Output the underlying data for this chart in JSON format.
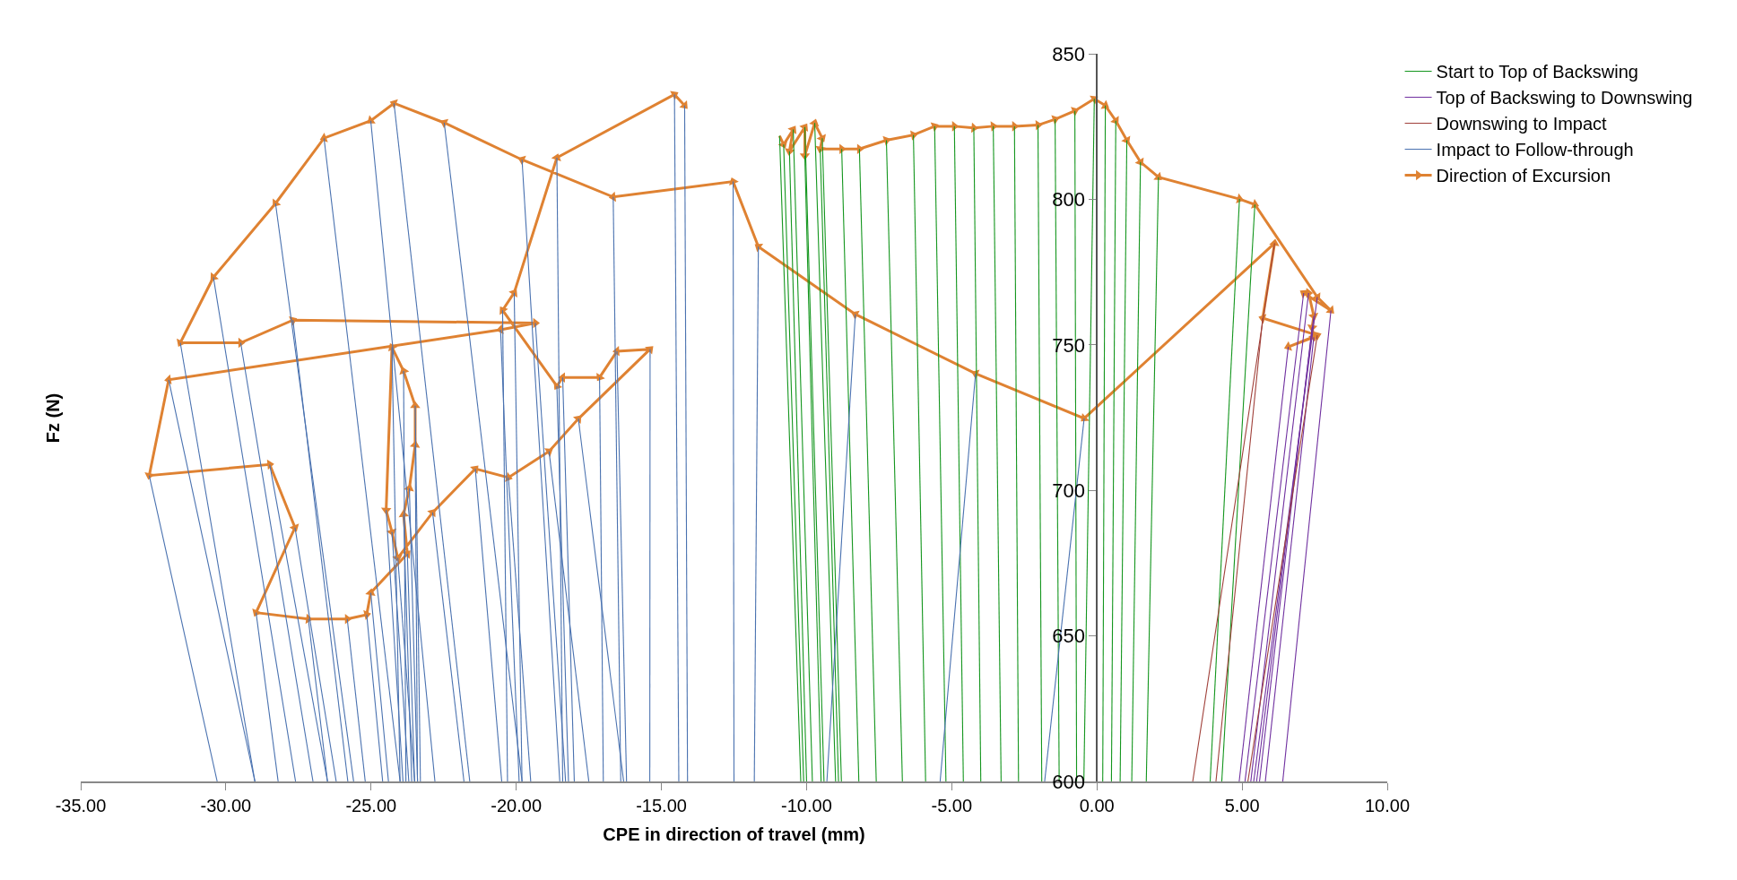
{
  "chart_data": {
    "type": "line",
    "xlabel": "CPE in direction of travel (mm)",
    "ylabel": "Fz (N)",
    "xlim": [
      -35,
      10
    ],
    "xticks": [
      {
        "value": -35,
        "label": "-35.00"
      },
      {
        "value": -30,
        "label": "-30.00"
      },
      {
        "value": -25,
        "label": "-25.00"
      },
      {
        "value": -20,
        "label": "-20.00"
      },
      {
        "value": -15,
        "label": "-15.00"
      },
      {
        "value": -10,
        "label": "-10.00"
      },
      {
        "value": -5,
        "label": "-5.00"
      },
      {
        "value": 0,
        "label": "0.00"
      },
      {
        "value": 5,
        "label": "5.00"
      },
      {
        "value": 10,
        "label": "10.00"
      }
    ],
    "ylim": [
      600,
      850
    ],
    "yticks": [
      600,
      650,
      700,
      750,
      800,
      850
    ],
    "legend": "top right",
    "series": [
      {
        "name": "Start to Top of Backswing",
        "color": "#14961e",
        "x": [
          -10.2,
          -10.93,
          null,
          -10.1,
          -10.79,
          null,
          -9.8,
          -10.46,
          null,
          -10.0,
          -10.59,
          null,
          -9.4,
          -10.06,
          null,
          -9.5,
          -10.06,
          null,
          -9.0,
          -9.72,
          null,
          -8.8,
          -9.46,
          null,
          -8.9,
          -9.53,
          null,
          -8.2,
          -8.79,
          null,
          -7.6,
          -8.18,
          null,
          -6.7,
          -7.25,
          null,
          -5.9,
          -6.32,
          null,
          -5.2,
          -5.59,
          null,
          -4.6,
          -4.91,
          null,
          -4.0,
          -4.24,
          null,
          -3.3,
          -3.57,
          null,
          -2.7,
          -2.84,
          null,
          -1.9,
          -2.03,
          null,
          -1.3,
          -1.44,
          null,
          -0.7,
          -0.76,
          null,
          -0.45,
          -0.09,
          null,
          0.2,
          0.29,
          null,
          0.5,
          0.65,
          null,
          0.8,
          1.03,
          null,
          1.2,
          1.5,
          null,
          1.7,
          2.12,
          null,
          3.9,
          4.91,
          null,
          4.3,
          5.44
        ],
        "values": [
          600,
          821.8,
          null,
          600,
          818.8,
          null,
          600,
          824,
          null,
          600,
          816.5,
          null,
          600,
          824.8,
          null,
          600,
          815,
          null,
          600,
          826.2,
          null,
          600,
          821,
          null,
          600,
          817.3,
          null,
          600,
          817.3,
          null,
          600,
          817.3,
          null,
          600,
          820.3,
          null,
          600,
          822.1,
          null,
          600,
          825.1,
          null,
          600,
          825.1,
          null,
          600,
          824.5,
          null,
          600,
          825.1,
          null,
          600,
          825.1,
          null,
          600,
          825.5,
          null,
          600,
          827.5,
          null,
          600,
          830.4,
          null,
          600,
          834.5,
          null,
          600,
          832.2,
          null,
          600,
          827,
          null,
          600,
          820.3,
          null,
          600,
          812.8,
          null,
          600,
          807.6,
          null,
          600,
          800.1,
          null,
          600,
          798.2
        ]
      },
      {
        "name": "Top of Backswing to Downswing",
        "color": "#7030a0",
        "x": [
          5.4,
          7.59,
          null,
          6.4,
          8.06,
          null,
          5.1,
          7.12,
          null,
          5.3,
          7.29,
          null,
          5.5,
          7.47,
          null,
          5.6,
          7.41,
          null,
          5.8,
          7.47,
          null,
          4.9,
          6.59
        ],
        "values": [
          600,
          766.4,
          null,
          600,
          761.8,
          null,
          600,
          767.8,
          null,
          600,
          767.8,
          null,
          600,
          759.9,
          null,
          600,
          756,
          null,
          600,
          752.6,
          null,
          600,
          749.3
        ]
      },
      {
        "name": "Downswing to Impact",
        "color": "#a0403a",
        "x": [
          5.2,
          7.59,
          null,
          4.1,
          5.71,
          null,
          3.3,
          6.12
        ],
        "values": [
          600,
          753.3,
          null,
          600,
          759.2,
          null,
          600,
          784.9
        ]
      },
      {
        "name": "Impact to Follow-through",
        "color": "#4a72b0",
        "x": [
          -1.8,
          -0.44,
          null,
          -5.4,
          -4.18,
          null,
          -9.3,
          -8.32,
          null,
          -11.8,
          -11.66,
          null,
          -12.5,
          -12.53,
          null,
          -16.4,
          -16.66,
          null,
          -18.5,
          -19.8,
          null,
          -19.8,
          -22.48,
          null,
          -21.6,
          -24.21,
          null,
          -22.8,
          -25.01,
          null,
          -24.0,
          -26.62,
          null,
          -25.6,
          -28.29,
          null,
          -27.6,
          -30.43,
          null,
          -29.0,
          -31.57,
          null,
          -27.0,
          -29.49,
          null,
          -25.8,
          -27.69,
          null,
          -18.3,
          -19.34,
          null,
          -19.9,
          -20.54,
          null,
          -29.0,
          -31.97,
          null,
          -30.3,
          -32.64,
          null,
          -26.5,
          -28.49,
          null,
          -26.2,
          -27.62,
          null,
          -28.2,
          -28.96,
          null,
          -26.5,
          -27.16,
          null,
          -25.2,
          -25.82,
          null,
          -24.6,
          -25.15,
          null,
          -24.4,
          -25.01,
          null,
          -23.5,
          -23.75,
          null,
          -23.6,
          -23.88,
          null,
          -23.4,
          -23.68,
          null,
          -23.4,
          -23.48,
          null,
          -23.3,
          -23.48,
          null,
          -23.8,
          -23.88,
          null,
          -24.0,
          -24.28,
          null,
          -23.9,
          -24.48,
          null,
          -23.7,
          -24.28,
          null,
          -23.5,
          -24.08,
          null,
          -21.8,
          -22.88,
          null,
          -20.5,
          -21.41,
          null,
          -19.5,
          -20.27,
          null,
          -17.5,
          -18.87,
          null,
          -16.3,
          -17.86,
          null,
          -15.4,
          -15.39,
          null,
          -16.2,
          -16.53,
          null,
          -17.0,
          -17.13,
          null,
          -18.0,
          -18.4,
          null,
          -18.2,
          -18.6,
          null,
          -20.3,
          -20.47,
          null,
          -19.8,
          -20.07,
          null,
          -18.4,
          -18.6,
          null,
          -14.4,
          -14.55,
          null,
          -14.1,
          -14.2
        ],
        "values": [
          600,
          724.7,
          null,
          600,
          740.1,
          null,
          600,
          760.5,
          null,
          600,
          783.7,
          null,
          600,
          806.1,
          null,
          600,
          800.8,
          null,
          600,
          813.6,
          null,
          600,
          826.3,
          null,
          600,
          833,
          null,
          600,
          827,
          null,
          600,
          821,
          null,
          600,
          798.6,
          null,
          600,
          773.2,
          null,
          600,
          750.7,
          null,
          600,
          750.7,
          null,
          600,
          758.5,
          null,
          600,
          757.5,
          null,
          600,
          755.2,
          null,
          600,
          738,
          null,
          600,
          705.1,
          null,
          600,
          708.9,
          null,
          600,
          687.2,
          null,
          600,
          658,
          null,
          600,
          655.8,
          null,
          600,
          655.8,
          null,
          600,
          657.3,
          null,
          600,
          664.8,
          null,
          600,
          678.2,
          null,
          600,
          691.7,
          null,
          600,
          700.7,
          null,
          600,
          715.6,
          null,
          600,
          729.1,
          null,
          600,
          741,
          null,
          600,
          749.2,
          null,
          600,
          693.2,
          null,
          600,
          685.7,
          null,
          600,
          676.8,
          null,
          600,
          692.4,
          null,
          600,
          707.4,
          null,
          600,
          704.4,
          null,
          600,
          713.4,
          null,
          600,
          724.6,
          null,
          600,
          748.5,
          null,
          600,
          747.8,
          null,
          600,
          738.8,
          null,
          600,
          738.8,
          null,
          600,
          735.8,
          null,
          600,
          761.9,
          null,
          600,
          767.9,
          null,
          600,
          814.3,
          null,
          600,
          836,
          null,
          600,
          832.2
        ]
      },
      {
        "name": "Direction of Excursion",
        "color": "#df8232",
        "marker": "triangle",
        "x": [
          -10.93,
          -10.79,
          -10.46,
          -10.59,
          -10.06,
          -10.06,
          -9.72,
          -9.46,
          -9.53,
          -8.79,
          -8.18,
          -7.25,
          -6.32,
          -5.59,
          -4.91,
          -4.24,
          -3.57,
          -2.84,
          -2.03,
          -1.44,
          -0.76,
          -0.09,
          0.29,
          0.65,
          1.03,
          1.5,
          2.12,
          4.91,
          5.44,
          7.59,
          8.06,
          7.12,
          7.29,
          7.47,
          7.41,
          7.47,
          6.59,
          7.59,
          5.71,
          6.12,
          -0.44,
          -4.18,
          -8.32,
          -11.66,
          -12.53,
          -16.66,
          -19.8,
          -22.48,
          -24.21,
          -25.01,
          -26.62,
          -28.29,
          -30.43,
          -31.57,
          -29.49,
          -27.69,
          -19.34,
          -20.54,
          -31.97,
          -32.64,
          -28.49,
          -27.62,
          -28.96,
          -27.16,
          -25.82,
          -25.15,
          -25.01,
          -23.75,
          -23.88,
          -23.68,
          -23.48,
          -23.48,
          -23.88,
          -24.28,
          -24.48,
          -24.28,
          -24.08,
          -22.88,
          -21.41,
          -20.27,
          -18.87,
          -17.86,
          -15.39,
          -16.53,
          -17.13,
          -18.4,
          -18.6,
          -20.47,
          -20.07,
          -18.6,
          -14.55,
          -14.2
        ],
        "values": [
          821.8,
          818.8,
          824,
          816.5,
          824.8,
          815,
          826.2,
          821,
          817.3,
          817.3,
          817.3,
          820.3,
          822.1,
          825.1,
          825.1,
          824.5,
          825.1,
          825.1,
          825.5,
          827.5,
          830.4,
          834.5,
          832.2,
          827,
          820.3,
          812.8,
          807.6,
          800.1,
          798.2,
          766.4,
          761.8,
          767.8,
          767.8,
          759.9,
          756,
          752.6,
          749.3,
          753.3,
          759.2,
          784.9,
          724.7,
          740.1,
          760.5,
          783.7,
          806.1,
          800.8,
          813.6,
          826.3,
          833,
          827,
          821,
          798.6,
          773.2,
          750.7,
          750.7,
          758.5,
          757.5,
          755.2,
          738,
          705.1,
          708.9,
          687.2,
          658,
          655.8,
          655.8,
          657.3,
          664.8,
          678.2,
          691.7,
          700.7,
          715.6,
          729.1,
          741,
          749.2,
          693.2,
          685.7,
          676.8,
          692.4,
          707.4,
          704.4,
          713.4,
          724.6,
          748.5,
          747.8,
          738.8,
          738.8,
          735.8,
          761.9,
          767.9,
          814.3,
          836,
          832.2
        ]
      }
    ]
  }
}
